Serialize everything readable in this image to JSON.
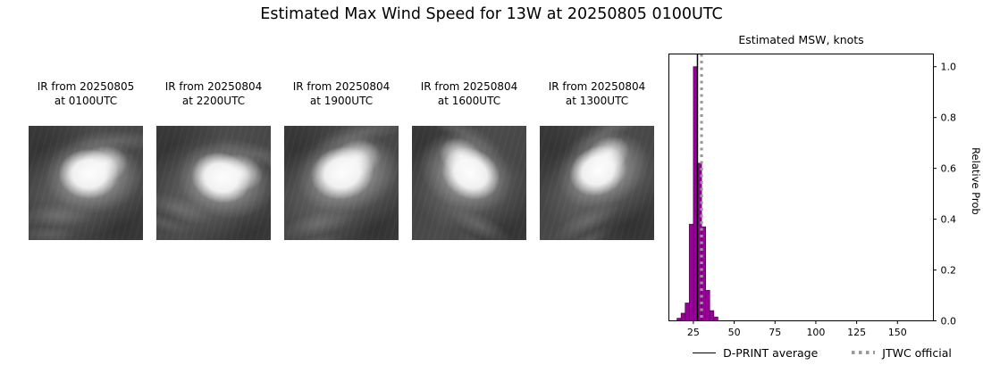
{
  "title": "Estimated Max Wind Speed for 13W at 20250805 0100UTC",
  "ir_panels": [
    {
      "line1": "IR from 20250805",
      "line2": "at 0100UTC"
    },
    {
      "line1": "IR from 20250804",
      "line2": "at 2200UTC"
    },
    {
      "line1": "IR from 20250804",
      "line2": "at 1900UTC"
    },
    {
      "line1": "IR from 20250804",
      "line2": "at 1600UTC"
    },
    {
      "line1": "IR from 20250804",
      "line2": "at 1300UTC"
    }
  ],
  "chart_data": {
    "type": "bar",
    "title": "Estimated MSW, knots",
    "ylabel": "Relative Prob",
    "xlim": [
      10,
      172
    ],
    "ylim": [
      0,
      1.05
    ],
    "xticks": [
      25,
      50,
      75,
      100,
      125,
      150
    ],
    "yticks": [
      0.0,
      0.2,
      0.4,
      0.6,
      0.8,
      1.0
    ],
    "bins": [
      {
        "x0": 15.0,
        "x1": 17.5,
        "h": 0.01
      },
      {
        "x0": 17.5,
        "x1": 20.0,
        "h": 0.03
      },
      {
        "x0": 20.0,
        "x1": 22.5,
        "h": 0.07
      },
      {
        "x0": 22.5,
        "x1": 25.0,
        "h": 0.38
      },
      {
        "x0": 25.0,
        "x1": 27.5,
        "h": 1.0
      },
      {
        "x0": 27.5,
        "x1": 30.0,
        "h": 0.62
      },
      {
        "x0": 30.0,
        "x1": 32.5,
        "h": 0.37
      },
      {
        "x0": 32.5,
        "x1": 35.0,
        "h": 0.12
      },
      {
        "x0": 35.0,
        "x1": 37.5,
        "h": 0.04
      },
      {
        "x0": 37.5,
        "x1": 40.0,
        "h": 0.015
      }
    ],
    "dprint_average": 27.5,
    "jtwc_official": 30,
    "bar_color": "#990099",
    "bar_edge": "#5c005c",
    "avg_line_color": "#000000",
    "jtwc_line_color": "#999999",
    "legend": [
      {
        "label": "D-PRINT average"
      },
      {
        "label": "JTWC official"
      }
    ]
  }
}
